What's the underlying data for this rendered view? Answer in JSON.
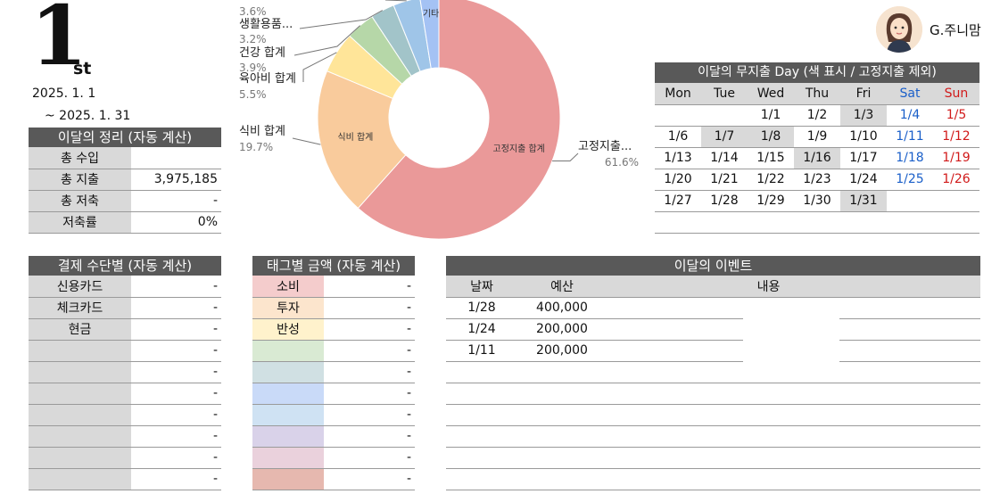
{
  "header": {
    "big_number": "1",
    "suffix": "st",
    "date_start": "2025. 1. 1",
    "date_end": "~  2025. 1. 31"
  },
  "user": {
    "name": "G.주니맘"
  },
  "summary": {
    "title": "이달의 정리 (자동 계산)",
    "rows": [
      {
        "label": "총 수입",
        "value": ""
      },
      {
        "label": "총 지출",
        "value": "3,975,185"
      },
      {
        "label": "총 저축",
        "value": "-"
      },
      {
        "label": "저축률",
        "value": "0%"
      }
    ]
  },
  "payment": {
    "title": "결제 수단별 (자동 계산)",
    "rows": [
      {
        "label": "신용카드",
        "value": "-"
      },
      {
        "label": "체크카드",
        "value": "-"
      },
      {
        "label": "현금",
        "value": "-"
      },
      {
        "label": "",
        "value": "-"
      },
      {
        "label": "",
        "value": "-"
      },
      {
        "label": "",
        "value": "-"
      },
      {
        "label": "",
        "value": "-"
      },
      {
        "label": "",
        "value": "-"
      },
      {
        "label": "",
        "value": "-"
      },
      {
        "label": "",
        "value": "-"
      }
    ]
  },
  "tags": {
    "title": "태그별 금액 (자동 계산)",
    "rows": [
      {
        "label": "소비",
        "value": "-",
        "color": "#f4cccc"
      },
      {
        "label": "투자",
        "value": "-",
        "color": "#fce5cd"
      },
      {
        "label": "반성",
        "value": "-",
        "color": "#fff2cc"
      },
      {
        "label": "",
        "value": "-",
        "color": "#d9ead3"
      },
      {
        "label": "",
        "value": "-",
        "color": "#d0e0e3"
      },
      {
        "label": "",
        "value": "-",
        "color": "#c9daf8"
      },
      {
        "label": "",
        "value": "-",
        "color": "#cfe2f3"
      },
      {
        "label": "",
        "value": "-",
        "color": "#d9d2e9"
      },
      {
        "label": "",
        "value": "-",
        "color": "#ead1dc"
      },
      {
        "label": "",
        "value": "-",
        "color": "#e6b8af"
      }
    ]
  },
  "events": {
    "title": "이달의 이벤트",
    "col_date": "날짜",
    "col_budget": "예산",
    "col_content": "내용",
    "rows": [
      {
        "date": "1/28",
        "budget": "400,000"
      },
      {
        "date": "1/24",
        "budget": "200,000"
      },
      {
        "date": "1/11",
        "budget": "200,000"
      },
      {
        "date": "",
        "budget": ""
      },
      {
        "date": "",
        "budget": ""
      },
      {
        "date": "",
        "budget": ""
      },
      {
        "date": "",
        "budget": ""
      },
      {
        "date": "",
        "budget": ""
      },
      {
        "date": "",
        "budget": ""
      }
    ]
  },
  "calendar": {
    "title": "이달의 무지출 Day (색 표시 / 고정지출 제외)",
    "days": [
      "Mon",
      "Tue",
      "Wed",
      "Thu",
      "Fri",
      "Sat",
      "Sun"
    ],
    "weeks": [
      [
        {
          "d": "",
          "hl": false
        },
        {
          "d": "",
          "hl": false
        },
        {
          "d": "1/1",
          "hl": false
        },
        {
          "d": "1/2",
          "hl": false
        },
        {
          "d": "1/3",
          "hl": true
        },
        {
          "d": "1/4",
          "hl": false
        },
        {
          "d": "1/5",
          "hl": false
        }
      ],
      [
        {
          "d": "1/6",
          "hl": false
        },
        {
          "d": "1/7",
          "hl": true
        },
        {
          "d": "1/8",
          "hl": true
        },
        {
          "d": "1/9",
          "hl": false
        },
        {
          "d": "1/10",
          "hl": false
        },
        {
          "d": "1/11",
          "hl": false
        },
        {
          "d": "1/12",
          "hl": false
        }
      ],
      [
        {
          "d": "1/13",
          "hl": false
        },
        {
          "d": "1/14",
          "hl": false
        },
        {
          "d": "1/15",
          "hl": false
        },
        {
          "d": "1/16",
          "hl": true
        },
        {
          "d": "1/17",
          "hl": false
        },
        {
          "d": "1/18",
          "hl": false
        },
        {
          "d": "1/19",
          "hl": false
        }
      ],
      [
        {
          "d": "1/20",
          "hl": false
        },
        {
          "d": "1/21",
          "hl": false
        },
        {
          "d": "1/22",
          "hl": false
        },
        {
          "d": "1/23",
          "hl": false
        },
        {
          "d": "1/24",
          "hl": false
        },
        {
          "d": "1/25",
          "hl": false
        },
        {
          "d": "1/26",
          "hl": false
        }
      ],
      [
        {
          "d": "1/27",
          "hl": false
        },
        {
          "d": "1/28",
          "hl": false
        },
        {
          "d": "1/29",
          "hl": false
        },
        {
          "d": "1/30",
          "hl": false
        },
        {
          "d": "1/31",
          "hl": true
        },
        {
          "d": "",
          "hl": false
        },
        {
          "d": "",
          "hl": false
        }
      ],
      [
        {
          "d": "",
          "hl": false
        },
        {
          "d": "",
          "hl": false
        },
        {
          "d": "",
          "hl": false
        },
        {
          "d": "",
          "hl": false
        },
        {
          "d": "",
          "hl": false
        },
        {
          "d": "",
          "hl": false
        },
        {
          "d": "",
          "hl": false
        }
      ]
    ]
  },
  "chart_data": {
    "type": "pie",
    "donut": true,
    "slices": [
      {
        "name": "고정지출 합계",
        "short": "고정지출...",
        "value": 61.6,
        "pct_label": "61.6%",
        "color": "#ea9999"
      },
      {
        "name": "식비 합계",
        "short": "식비 합계",
        "value": 19.7,
        "pct_label": "19.7%",
        "color": "#f9cb9c"
      },
      {
        "name": "육아비 합계",
        "short": "육아비 합계",
        "value": 5.5,
        "pct_label": "5.5%",
        "color": "#ffe599"
      },
      {
        "name": "건강 합계",
        "short": "건강 합계",
        "value": 3.9,
        "pct_label": "3.9%",
        "color": "#b6d7a8"
      },
      {
        "name": "생활용품 합계",
        "short": "생활용품...",
        "value": 3.2,
        "pct_label": "3.2%",
        "color": "#a2c4c9"
      },
      {
        "name": "",
        "short": "",
        "value": 3.6,
        "pct_label": "3.6%",
        "color": "#9fc5e8"
      },
      {
        "name": "기타",
        "short": "기타",
        "value": 2.5,
        "pct_label": "",
        "color": "#a4c2f4"
      }
    ]
  }
}
